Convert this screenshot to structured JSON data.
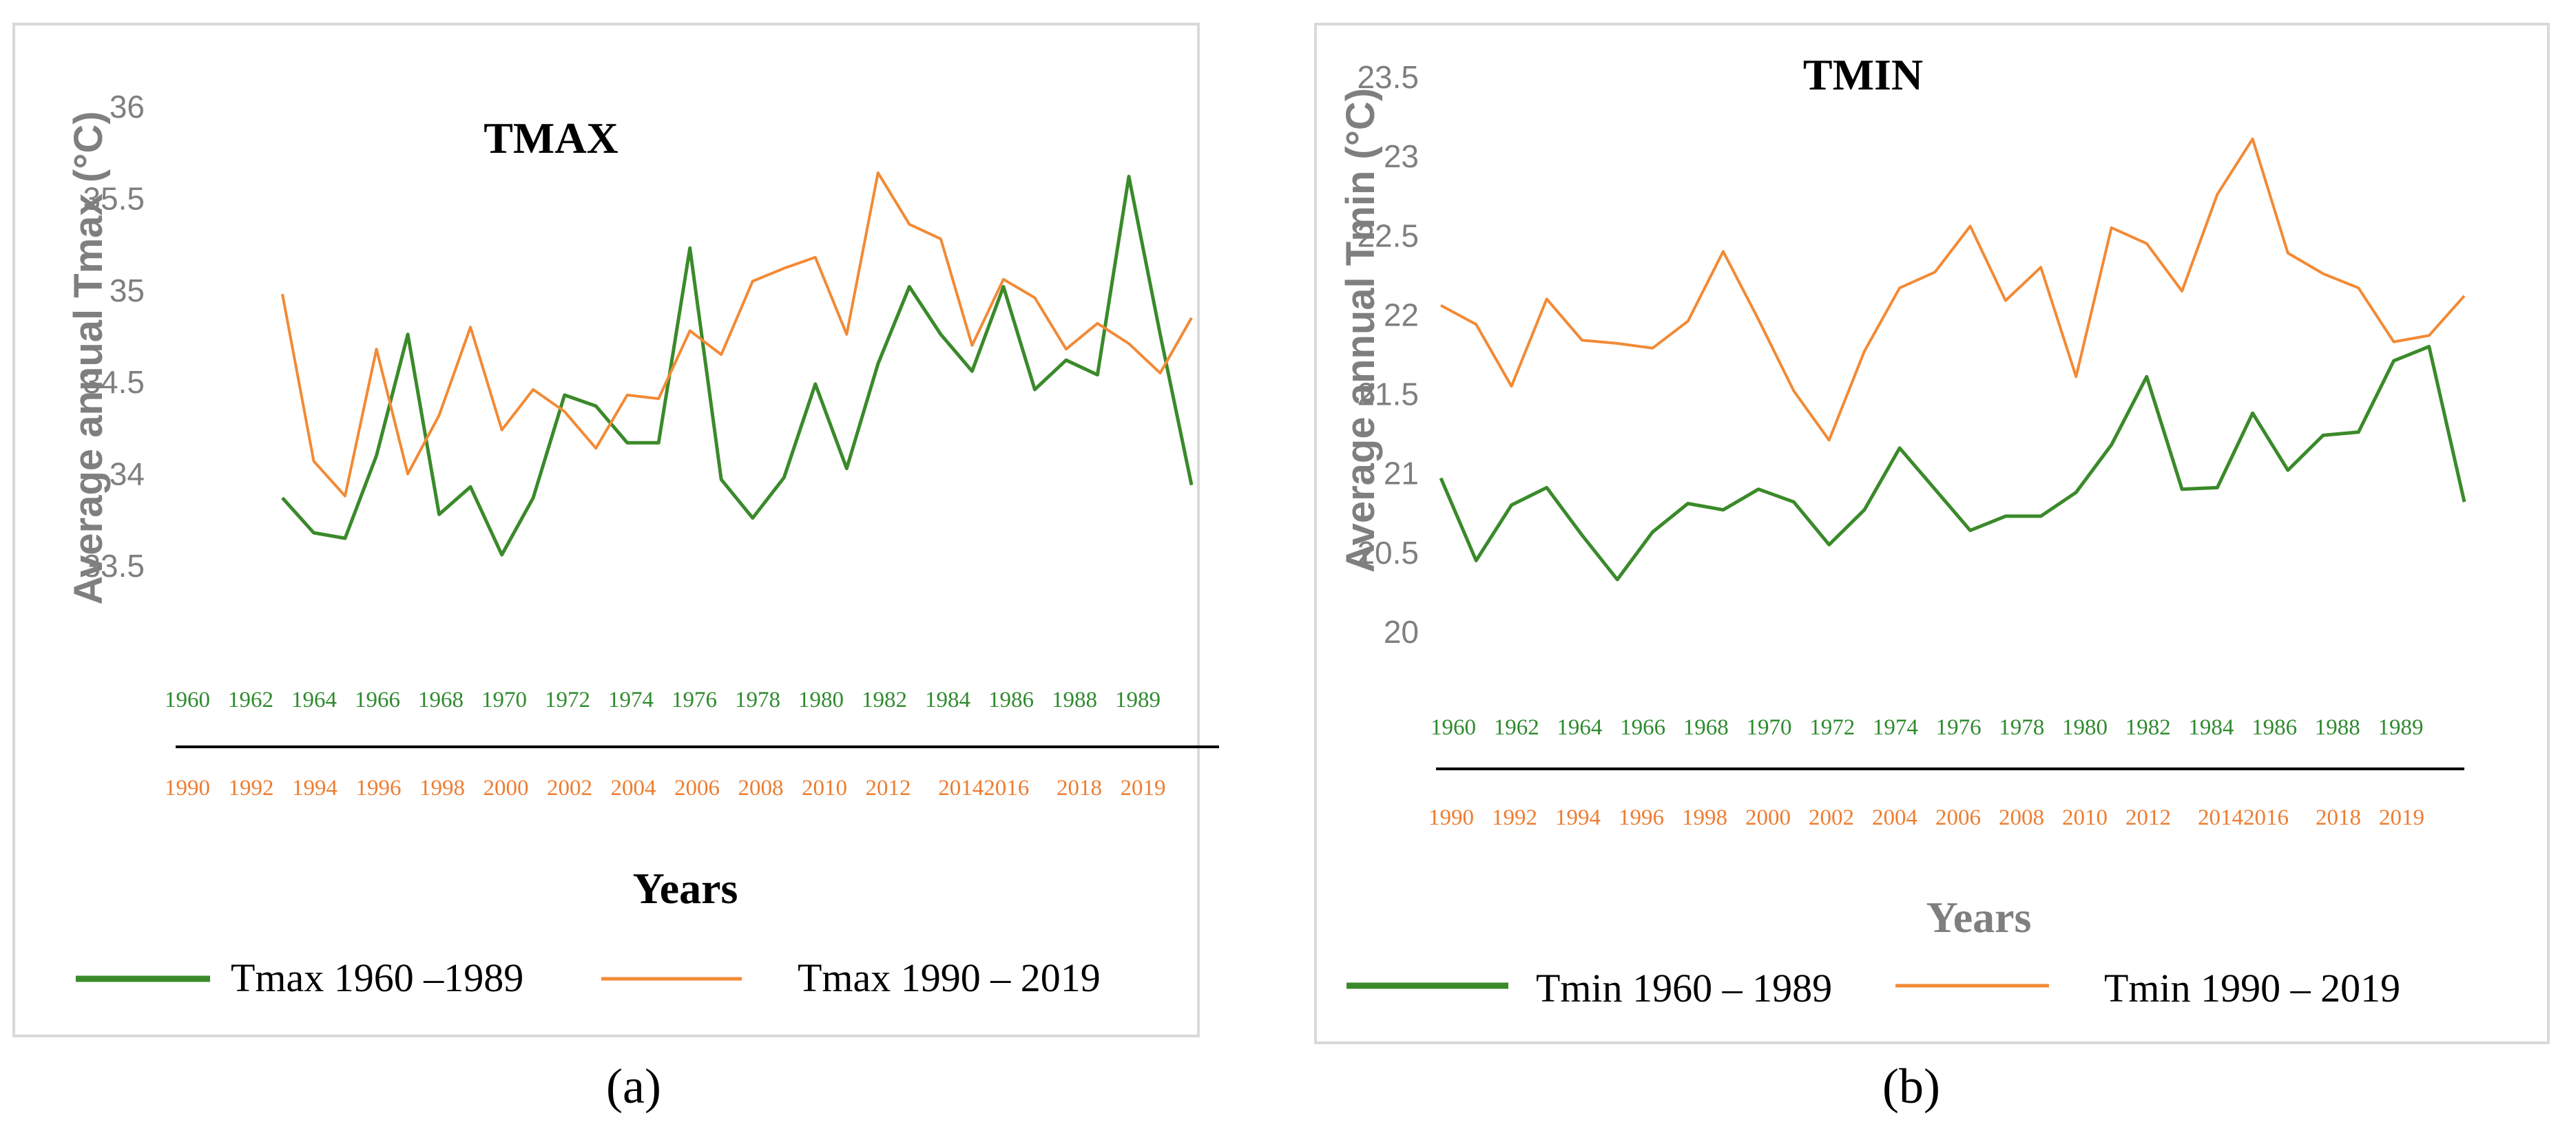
{
  "colors": {
    "series_green": "#3a8a2a",
    "series_orange": "#f28a35",
    "frame": "#d9d9d9",
    "axis_line": "#000000",
    "tick_text": "#7f7f7f"
  },
  "captions": {
    "a": "(a)",
    "b": "(b)"
  },
  "x_ticks_top": [
    "1960",
    "1962",
    "1964",
    "1966",
    "1968",
    "1970",
    "1972",
    "1974",
    "1976",
    "1978",
    "1980",
    "1982",
    "1984",
    "1986",
    "1988",
    "1989"
  ],
  "x_ticks_bottom": [
    "1990",
    "1992",
    "1994",
    "1996",
    "1998",
    "2000",
    "2002",
    "2004",
    "2006",
    "2008",
    "2010",
    "2012",
    "20142016",
    "2018",
    "2019"
  ],
  "chart_data": [
    {
      "type": "line",
      "title": "TMAX",
      "xlabel": "Years",
      "ylabel": "Average annual Tmax (°C)",
      "ylim": [
        33.5,
        36
      ],
      "yticks": [
        "33.5",
        "34",
        "34.5",
        "35",
        "35.5",
        "36"
      ],
      "grid": false,
      "legend_position": "bottom",
      "series": [
        {
          "name": "Tmax 1960 –1989",
          "values": [
            33.87,
            33.68,
            33.65,
            34.1,
            34.76,
            33.78,
            33.93,
            33.56,
            33.87,
            34.43,
            34.37,
            34.17,
            34.17,
            35.23,
            33.97,
            33.76,
            33.98,
            34.49,
            34.03,
            34.6,
            35.02,
            34.76,
            34.56,
            35.02,
            34.46,
            34.62,
            34.54,
            35.62,
            34.76,
            33.94
          ]
        },
        {
          "name": "Tmax 1990 – 2019",
          "values": [
            34.98,
            34.07,
            33.88,
            34.68,
            34.0,
            34.32,
            34.8,
            34.24,
            34.46,
            34.34,
            34.14,
            34.43,
            34.41,
            34.78,
            34.65,
            35.05,
            35.12,
            35.18,
            34.76,
            35.64,
            35.36,
            35.28,
            34.7,
            35.06,
            34.96,
            34.68,
            34.82,
            34.71,
            34.55,
            34.85
          ]
        }
      ]
    },
    {
      "type": "line",
      "title": "TMIN",
      "xlabel": "Years",
      "ylabel": "Average annual Tmin (°C)",
      "ylim": [
        20,
        23.5
      ],
      "yticks": [
        "20",
        "20.5",
        "21",
        "21.5",
        "22",
        "22.5",
        "23",
        "23.5"
      ],
      "grid": false,
      "legend_position": "bottom",
      "series": [
        {
          "name": "Tmin 1960 – 1989",
          "values": [
            20.97,
            20.45,
            20.8,
            20.91,
            20.61,
            20.33,
            20.63,
            20.81,
            20.77,
            20.9,
            20.82,
            20.55,
            20.77,
            21.16,
            20.9,
            20.64,
            20.73,
            20.73,
            20.88,
            21.18,
            21.61,
            20.9,
            20.91,
            21.38,
            21.02,
            21.24,
            21.26,
            21.71,
            21.8,
            20.82
          ]
        },
        {
          "name": "Tmin 1990 – 2019",
          "values": [
            22.06,
            21.94,
            21.55,
            22.1,
            21.84,
            21.82,
            21.79,
            21.96,
            22.4,
            21.97,
            21.52,
            21.21,
            21.77,
            22.17,
            22.27,
            22.56,
            22.09,
            22.3,
            21.61,
            22.55,
            22.45,
            22.15,
            22.76,
            23.11,
            22.39,
            22.26,
            22.17,
            21.83,
            21.87,
            22.12
          ]
        }
      ]
    }
  ]
}
